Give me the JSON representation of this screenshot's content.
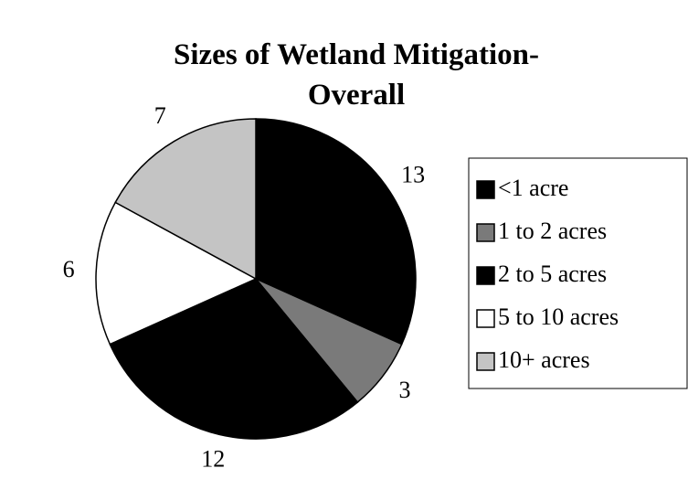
{
  "chart_data": {
    "type": "pie",
    "title": "Sizes of Wetland Mitigation- Overall",
    "categories": [
      "<1 acre",
      "1 to 2 acres",
      "2 to 5 acres",
      "5 to 10 acres",
      "10+ acres"
    ],
    "values": [
      13,
      3,
      12,
      6,
      7
    ],
    "colors": [
      "#000000",
      "#7a7a7a",
      "#000000",
      "#ffffff",
      "#c4c4c4"
    ],
    "legend": "right"
  }
}
